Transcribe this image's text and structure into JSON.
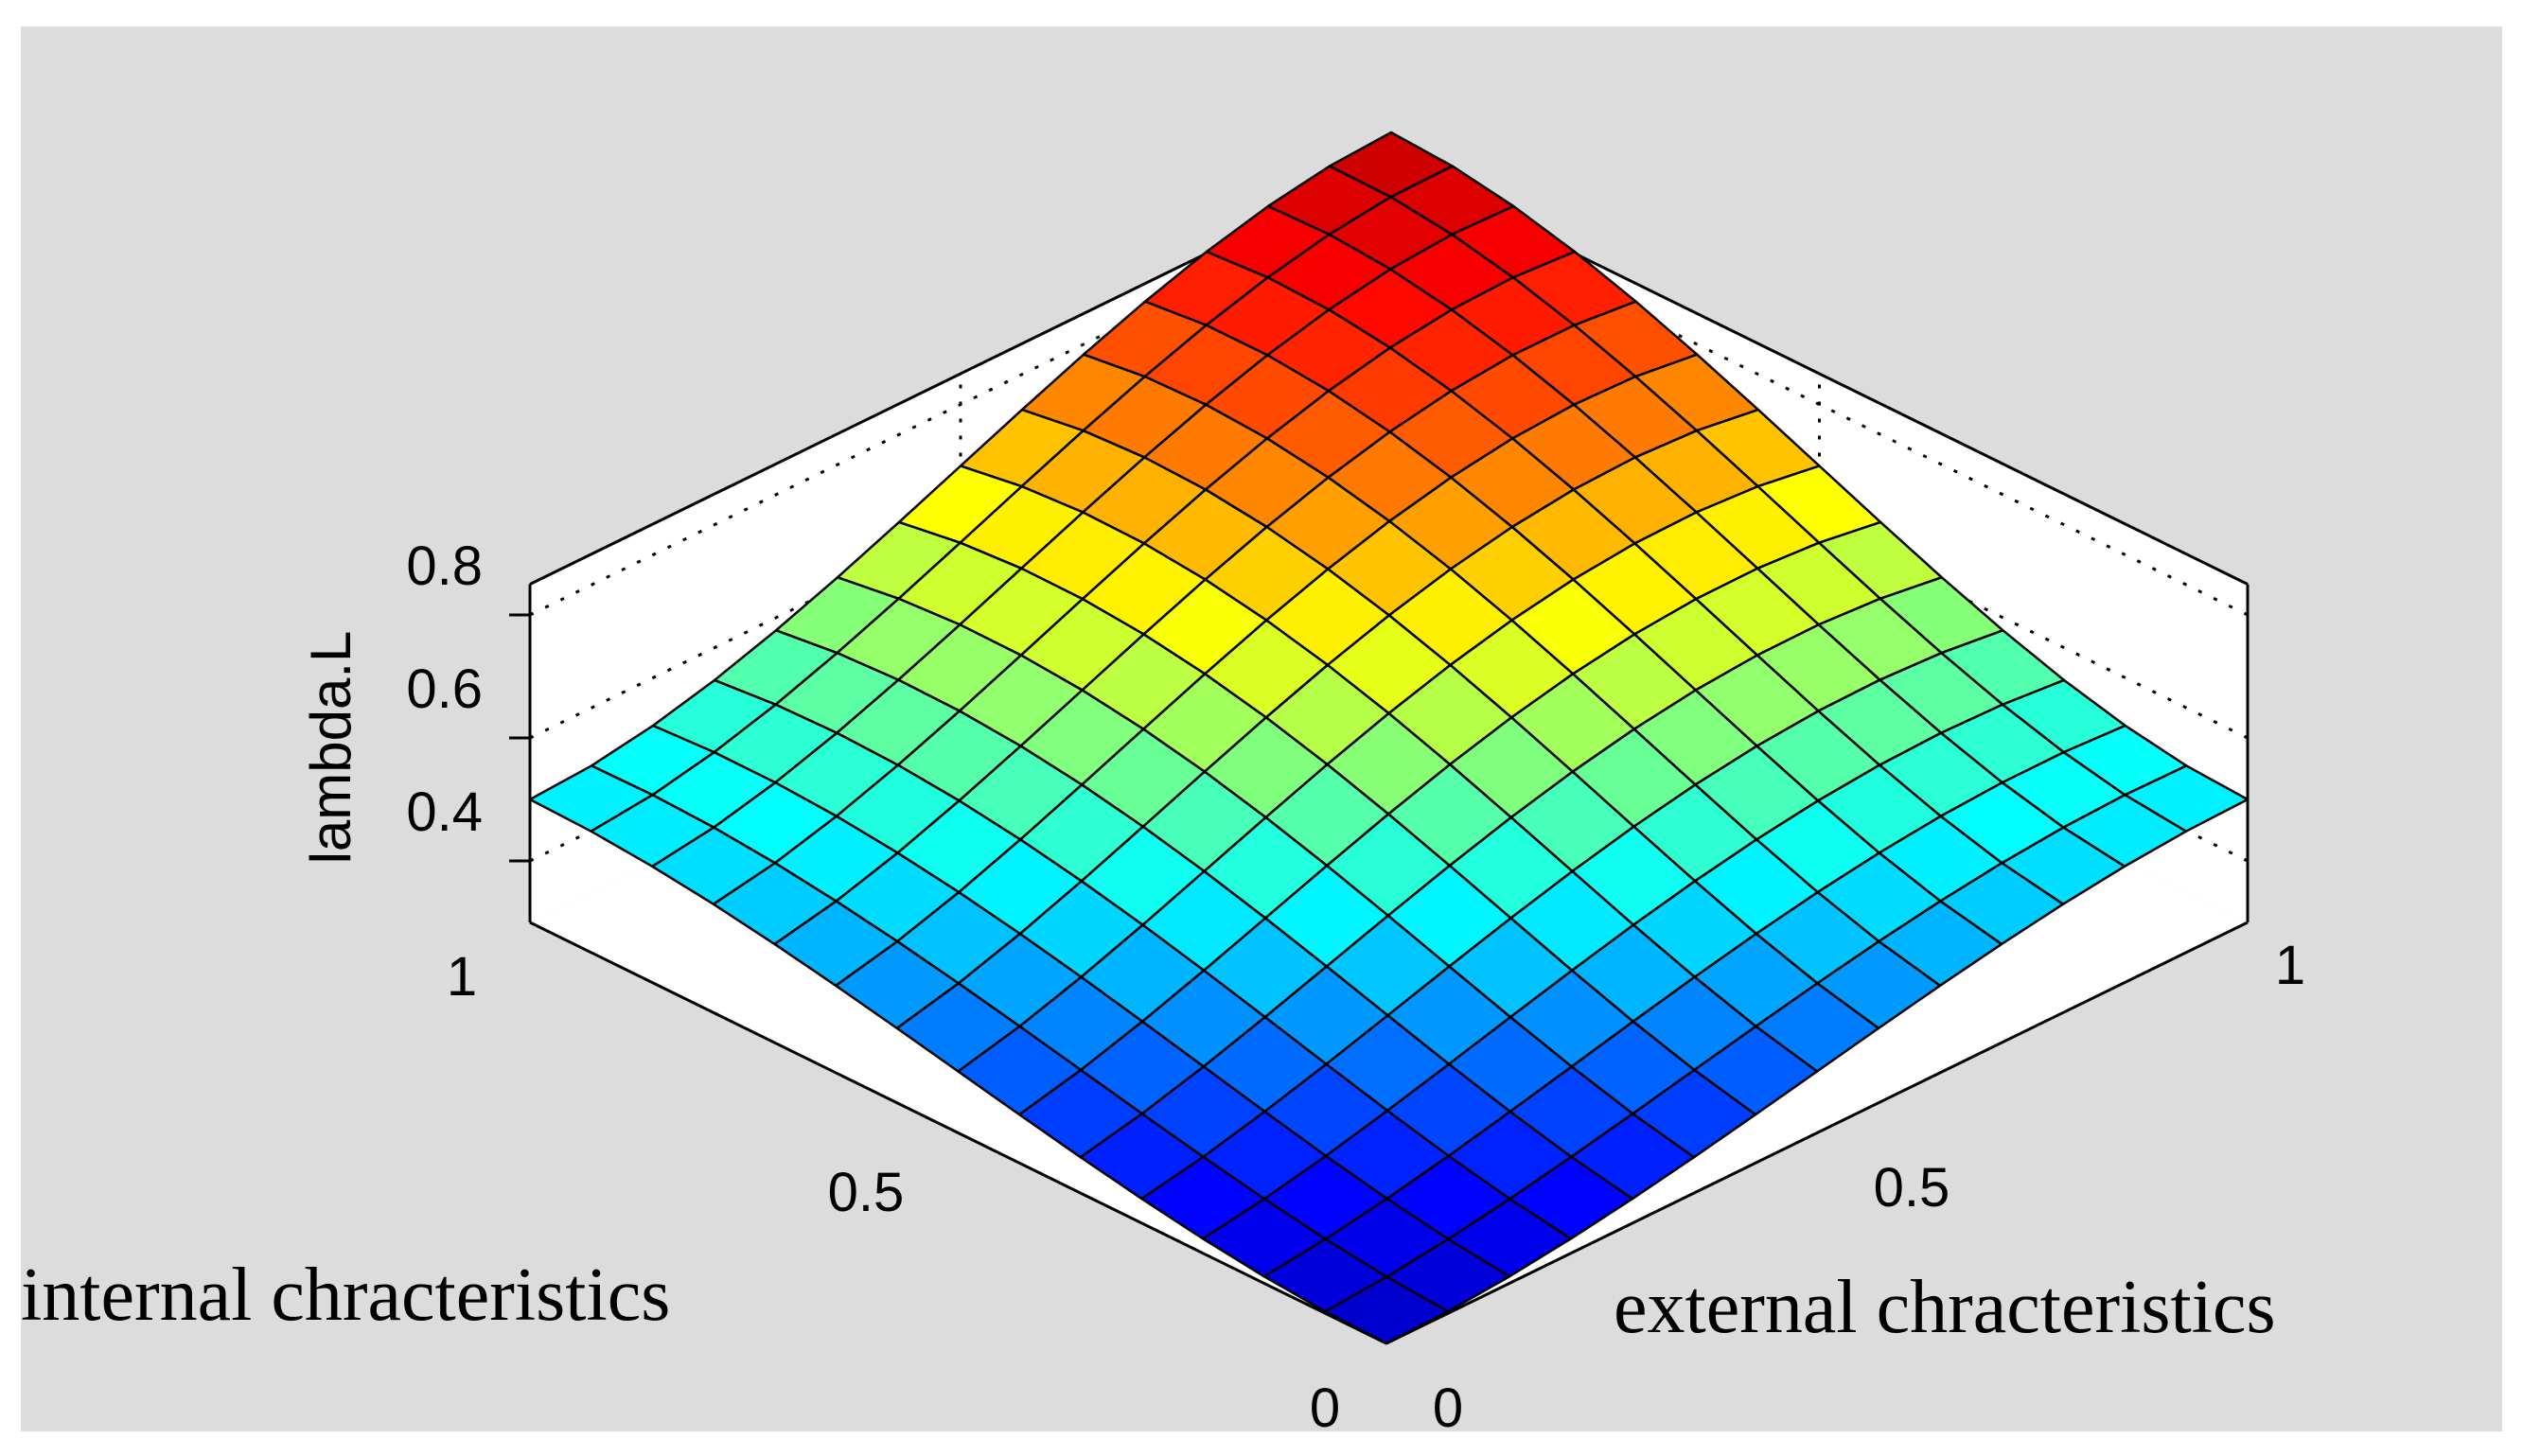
{
  "chart_data": {
    "type": "surface",
    "title": "",
    "xlabel": "external chracteristics",
    "ylabel": "internal chracteristics",
    "zlabel": "lambda.L",
    "xlim": [
      0,
      1
    ],
    "ylim": [
      0,
      1
    ],
    "zlim": [
      0.3,
      0.8
    ],
    "x_ticks": [
      "0",
      "0.5",
      "1"
    ],
    "y_ticks": [
      "0",
      "0.5",
      "1"
    ],
    "z_ticks": [
      "0.4",
      "0.6",
      "0.8"
    ],
    "grid": true,
    "colormap": "jet",
    "grid_points": 15,
    "surface": {
      "corner_values": {
        "x0_y0": 0.3,
        "x1_y0": 0.5,
        "x0_y1": 0.5,
        "x1_y1": 0.9
      },
      "mid_edge_values": {
        "x0_y0.5": 0.32,
        "x1_y0.5": 0.62,
        "x0.5_y0": 0.32,
        "x0.5_y1": 0.62,
        "center": 0.55
      }
    }
  }
}
